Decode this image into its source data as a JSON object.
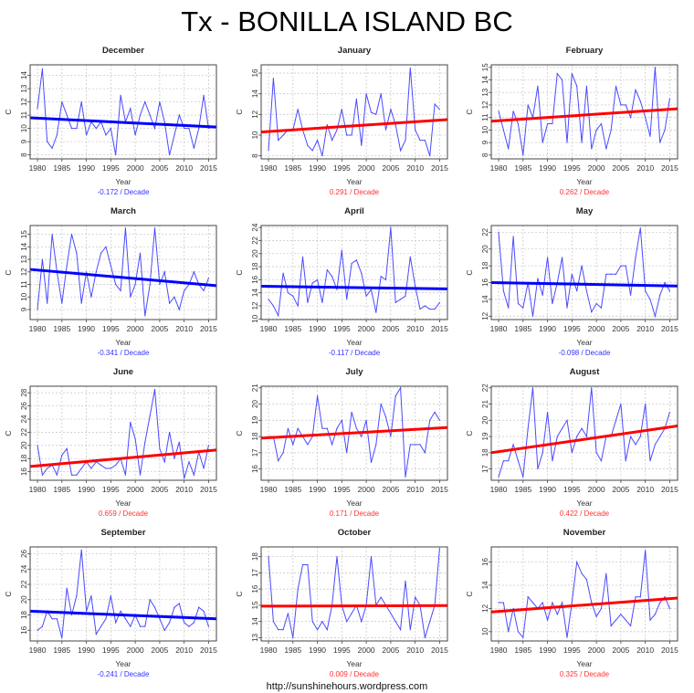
{
  "title": "Tx - BONILLA ISLAND BC",
  "watermark": "http://sunshinehours.wordpress.com",
  "colors": {
    "data_line": "#4a4aff",
    "trend_down": "#0000ff",
    "trend_up": "#ff0000",
    "label_down": "#3333ff",
    "label_up": "#ff3333"
  },
  "chart_data": [
    {
      "type": "line",
      "title": "December",
      "xlabel": "Year",
      "ylabel": "C",
      "grid": true,
      "xlim": [
        1978.5,
        2016.6
      ],
      "ylim": [
        7.7,
        14.8
      ],
      "xticks": [
        1980,
        1985,
        1990,
        1995,
        2000,
        2005,
        2010,
        2015
      ],
      "yticks": [
        8,
        9,
        10,
        11,
        12,
        13,
        14
      ],
      "trend_direction": "down",
      "trend_label": "-0.172  / Decade",
      "trend_line": [
        [
          1978.5,
          10.8
        ],
        [
          2016.6,
          10.1
        ]
      ],
      "x_start": 1980,
      "values": [
        11.5,
        14.5,
        9,
        8.5,
        9.5,
        12,
        11,
        10,
        10,
        12,
        9.5,
        10.5,
        10,
        10.5,
        9.5,
        10,
        8,
        12.5,
        10.5,
        11.5,
        9.5,
        11,
        12,
        11,
        10,
        12,
        10.5,
        8,
        9.5,
        11,
        10,
        10,
        8.5,
        10,
        12.5,
        10
      ]
    },
    {
      "type": "line",
      "title": "January",
      "xlabel": "Year",
      "ylabel": "C",
      "grid": true,
      "xlim": [
        1978.5,
        2016.6
      ],
      "ylim": [
        7.7,
        16.8
      ],
      "xticks": [
        1980,
        1985,
        1990,
        1995,
        2000,
        2005,
        2010,
        2015
      ],
      "yticks": [
        8,
        10,
        12,
        14,
        16
      ],
      "trend_direction": "up",
      "trend_label": "0.291  / Decade",
      "trend_line": [
        [
          1978.5,
          10.3
        ],
        [
          2016.6,
          11.5
        ]
      ],
      "x_start": 1980,
      "values": [
        8.5,
        15.5,
        9.5,
        10,
        10.5,
        10.5,
        12.5,
        10.5,
        9,
        8.5,
        9.5,
        8,
        11,
        9.5,
        10.5,
        12.5,
        10,
        10,
        13.5,
        9,
        14,
        12.2,
        12,
        14,
        10.5,
        12.5,
        11,
        8.5,
        9.5,
        16.5,
        10.5,
        9.5,
        9.5,
        8,
        13,
        12.5
      ]
    },
    {
      "type": "line",
      "title": "February",
      "xlabel": "Year",
      "ylabel": "C",
      "grid": true,
      "xlim": [
        1978.5,
        2016.6
      ],
      "ylim": [
        7.7,
        15.2
      ],
      "xticks": [
        1980,
        1985,
        1990,
        1995,
        2000,
        2005,
        2010,
        2015
      ],
      "yticks": [
        8,
        9,
        10,
        11,
        12,
        13,
        14,
        15
      ],
      "trend_direction": "up",
      "trend_label": "0.262  / Decade",
      "trend_line": [
        [
          1978.5,
          10.7
        ],
        [
          2016.6,
          11.7
        ]
      ],
      "x_start": 1980,
      "values": [
        11.5,
        10,
        8.5,
        11.5,
        10.5,
        8,
        12,
        11,
        13.5,
        9,
        10.5,
        10.5,
        14.5,
        14,
        9,
        14.5,
        13.5,
        9,
        13.5,
        8.5,
        10,
        10.5,
        8.5,
        10,
        13.5,
        12,
        12,
        11,
        13.2,
        12.3,
        11,
        9.5,
        15,
        9,
        10,
        12.5
      ]
    },
    {
      "type": "line",
      "title": "March",
      "xlabel": "Year",
      "ylabel": "C",
      "grid": true,
      "xlim": [
        1978.5,
        2016.6
      ],
      "ylim": [
        8.2,
        15.7
      ],
      "xticks": [
        1980,
        1985,
        1990,
        1995,
        2000,
        2005,
        2010,
        2015
      ],
      "yticks": [
        9,
        10,
        11,
        12,
        13,
        14,
        15
      ],
      "trend_direction": "down",
      "trend_label": "-0.341  / Decade",
      "trend_line": [
        [
          1978.5,
          12.2
        ],
        [
          2016.6,
          10.9
        ]
      ],
      "x_start": 1980,
      "values": [
        9,
        13,
        9.5,
        15,
        12,
        9.5,
        12.5,
        15,
        13.5,
        9.5,
        12,
        10,
        12,
        13.5,
        14,
        12.5,
        11,
        10.5,
        15.5,
        10,
        11,
        13.5,
        8.5,
        11,
        15.5,
        11,
        12,
        9.5,
        10,
        9,
        10.5,
        11,
        12,
        11,
        10.5,
        11.5
      ]
    },
    {
      "type": "line",
      "title": "April",
      "xlabel": "Year",
      "ylabel": "C",
      "grid": true,
      "xlim": [
        1978.5,
        2016.6
      ],
      "ylim": [
        9.9,
        24.3
      ],
      "xticks": [
        1980,
        1985,
        1990,
        1995,
        2000,
        2005,
        2010,
        2015
      ],
      "yticks": [
        10,
        12,
        14,
        16,
        18,
        20,
        22,
        24
      ],
      "trend_direction": "down",
      "trend_label": "-0.117  / Decade",
      "trend_line": [
        [
          1978.5,
          15.0
        ],
        [
          2016.6,
          14.6
        ]
      ],
      "x_start": 1980,
      "values": [
        13,
        12,
        10.5,
        17,
        14,
        13.5,
        12,
        19.5,
        12.5,
        15.5,
        16,
        12.5,
        17.5,
        16.5,
        14.5,
        20.5,
        13,
        18.5,
        19,
        17,
        13.5,
        14.5,
        11,
        16.5,
        16,
        24,
        12.5,
        13,
        13.5,
        19.5,
        15,
        11.5,
        12,
        11.5,
        11.5,
        12.5
      ]
    },
    {
      "type": "line",
      "title": "May",
      "xlabel": "Year",
      "ylabel": "C",
      "grid": true,
      "xlim": [
        1978.5,
        2016.6
      ],
      "ylim": [
        11.6,
        22.8
      ],
      "xticks": [
        1980,
        1985,
        1990,
        1995,
        2000,
        2005,
        2010,
        2015
      ],
      "yticks": [
        12,
        14,
        16,
        18,
        20,
        22
      ],
      "trend_direction": "down",
      "trend_label": "-0.098  / Decade",
      "trend_line": [
        [
          1978.5,
          16.0
        ],
        [
          2016.6,
          15.6
        ]
      ],
      "x_start": 1980,
      "values": [
        22,
        15,
        13,
        21.5,
        13.5,
        13,
        16,
        12,
        16.5,
        14.5,
        19,
        13.5,
        16,
        19,
        13,
        17,
        15,
        18,
        15,
        12.5,
        13.5,
        13,
        17,
        17,
        17,
        18,
        18,
        14.5,
        19,
        22.5,
        15,
        14,
        12,
        14.5,
        16,
        15
      ]
    },
    {
      "type": "line",
      "title": "June",
      "xlabel": "Year",
      "ylabel": "C",
      "grid": true,
      "xlim": [
        1978.5,
        2016.6
      ],
      "ylim": [
        14.7,
        29
      ],
      "xticks": [
        1980,
        1985,
        1990,
        1995,
        2000,
        2005,
        2010,
        2015
      ],
      "yticks": [
        16,
        18,
        20,
        22,
        24,
        26,
        28
      ],
      "trend_direction": "up",
      "trend_label": "0.659  / Decade",
      "trend_line": [
        [
          1978.5,
          16.8
        ],
        [
          2016.6,
          19.3
        ]
      ],
      "x_start": 1980,
      "values": [
        20,
        15.5,
        16.5,
        17,
        15.5,
        18.5,
        19.5,
        15.5,
        15.5,
        16.5,
        17.5,
        16.5,
        17.5,
        17,
        16.5,
        16.5,
        17,
        18,
        15.5,
        23.5,
        21,
        15.5,
        20.5,
        24.5,
        28.5,
        19.5,
        17.5,
        22,
        18,
        20.5,
        15,
        17.5,
        15.5,
        19,
        16.5,
        20
      ]
    },
    {
      "type": "line",
      "title": "July",
      "xlabel": "Year",
      "ylabel": "C",
      "grid": true,
      "xlim": [
        1978.5,
        2016.6
      ],
      "ylim": [
        15.3,
        21.1
      ],
      "xticks": [
        1980,
        1985,
        1990,
        1995,
        2000,
        2005,
        2010,
        2015
      ],
      "yticks": [
        16,
        17,
        18,
        19,
        20,
        21
      ],
      "trend_direction": "up",
      "trend_label": "0.171  / Decade",
      "trend_line": [
        [
          1978.5,
          17.9
        ],
        [
          2016.6,
          18.55
        ]
      ],
      "x_start": 1980,
      "values": [
        18,
        18,
        16.5,
        17,
        18.5,
        17.5,
        18.5,
        18,
        17.5,
        18,
        20.5,
        18.5,
        18.5,
        17.5,
        18.5,
        19,
        17,
        19.5,
        18.5,
        18,
        19,
        16.4,
        17.5,
        20,
        19.2,
        18,
        20.5,
        21,
        15.5,
        17.5,
        17.5,
        17.5,
        17,
        19,
        19.5,
        19
      ]
    },
    {
      "type": "line",
      "title": "August",
      "xlabel": "Year",
      "ylabel": "C",
      "grid": true,
      "xlim": [
        1978.5,
        2016.6
      ],
      "ylim": [
        16.3,
        22.1
      ],
      "xticks": [
        1980,
        1985,
        1990,
        1995,
        2000,
        2005,
        2010,
        2015
      ],
      "yticks": [
        17,
        18,
        19,
        20,
        21,
        22
      ],
      "trend_direction": "up",
      "trend_label": "0.422  / Decade",
      "trend_line": [
        [
          1978.5,
          18.0
        ],
        [
          2016.6,
          19.65
        ]
      ],
      "x_start": 1980,
      "values": [
        16.5,
        17.5,
        17.5,
        18.5,
        17.5,
        16.5,
        19.5,
        22,
        17,
        18,
        20.5,
        17.5,
        19,
        19.5,
        20,
        18,
        19,
        19.5,
        19,
        22,
        18,
        17.5,
        19,
        19,
        20,
        21,
        17.5,
        19,
        18.5,
        19,
        21,
        17.5,
        18.5,
        19,
        19.5,
        20.5
      ]
    },
    {
      "type": "line",
      "title": "September",
      "xlabel": "Year",
      "ylabel": "C",
      "grid": true,
      "xlim": [
        1978.5,
        2016.6
      ],
      "ylim": [
        14.6,
        26.9
      ],
      "xticks": [
        1980,
        1985,
        1990,
        1995,
        2000,
        2005,
        2010,
        2015
      ],
      "yticks": [
        16,
        18,
        20,
        22,
        24,
        26
      ],
      "trend_direction": "down",
      "trend_label": "-0.241  / Decade",
      "trend_line": [
        [
          1978.5,
          18.5
        ],
        [
          2016.6,
          17.5
        ]
      ],
      "x_start": 1980,
      "values": [
        16,
        16.5,
        18.5,
        17.5,
        17.5,
        15,
        21.5,
        18,
        20.5,
        26.5,
        18.5,
        20.5,
        15.5,
        16.5,
        17.5,
        20.5,
        17,
        18.5,
        17.5,
        16.5,
        18,
        16.5,
        16.5,
        20,
        19,
        17.5,
        16,
        17,
        19,
        19.5,
        17,
        16.5,
        17,
        19,
        18.5,
        16.5
      ]
    },
    {
      "type": "line",
      "title": "October",
      "xlabel": "Year",
      "ylabel": "C",
      "grid": true,
      "xlim": [
        1978.5,
        2016.6
      ],
      "ylim": [
        12.8,
        18.6
      ],
      "xticks": [
        1980,
        1985,
        1990,
        1995,
        2000,
        2005,
        2010,
        2015
      ],
      "yticks": [
        13,
        14,
        15,
        16,
        17,
        18
      ],
      "trend_direction": "up",
      "trend_label": "0.009  / Decade",
      "trend_line": [
        [
          1978.5,
          14.95
        ],
        [
          2016.6,
          14.98
        ]
      ],
      "x_start": 1980,
      "values": [
        18,
        14,
        13.5,
        13.5,
        14.5,
        13,
        16,
        17.5,
        17.5,
        14,
        13.5,
        14,
        13.5,
        15,
        18,
        15,
        14,
        14.5,
        15,
        14,
        15,
        18,
        15,
        15.5,
        15,
        14.5,
        14,
        13.5,
        16.5,
        13.5,
        15.5,
        15,
        13,
        14,
        15,
        18.5
      ]
    },
    {
      "type": "line",
      "title": "November",
      "xlabel": "Year",
      "ylabel": "C",
      "grid": true,
      "xlim": [
        1978.5,
        2016.6
      ],
      "ylim": [
        9.2,
        17.3
      ],
      "xticks": [
        1980,
        1985,
        1990,
        1995,
        2000,
        2005,
        2010,
        2015
      ],
      "yticks": [
        10,
        12,
        14,
        16
      ],
      "trend_direction": "up",
      "trend_label": "0.325  / Decade",
      "trend_line": [
        [
          1978.5,
          11.7
        ],
        [
          2016.6,
          12.9
        ]
      ],
      "x_start": 1980,
      "values": [
        12.5,
        12.5,
        10,
        12,
        10,
        9.5,
        13,
        12.5,
        12,
        12.5,
        11,
        12.5,
        11.5,
        12.5,
        9.5,
        12.5,
        16,
        15,
        14.5,
        12.5,
        11.3,
        12,
        15,
        10.5,
        11,
        11.5,
        11,
        10.5,
        13,
        13,
        17,
        11,
        11.5,
        12.5,
        13,
        12
      ]
    }
  ]
}
